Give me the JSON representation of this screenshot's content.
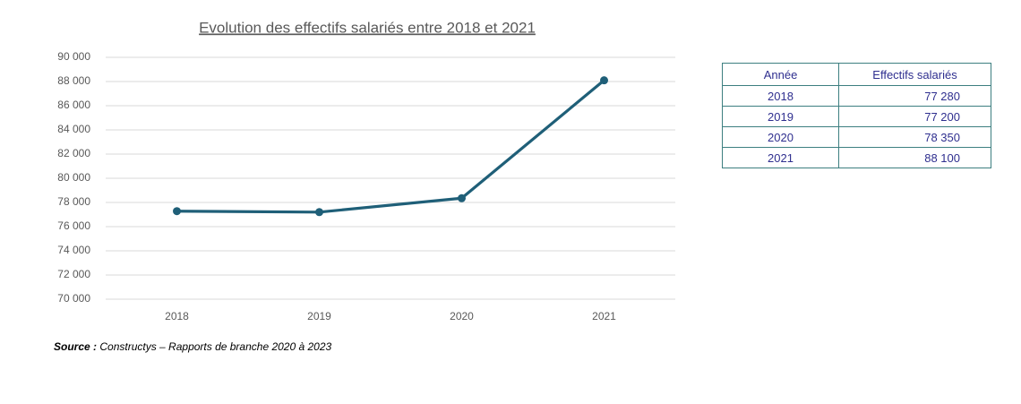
{
  "chart_data": {
    "type": "line",
    "title": "Evolution des effectifs salariés entre 2018 et 2021",
    "categories": [
      "2018",
      "2019",
      "2020",
      "2021"
    ],
    "values": [
      77280,
      77200,
      78350,
      88100
    ],
    "color": "#1f5f78",
    "ylim": [
      70000,
      90000
    ],
    "yticks": [
      {
        "value": 70000,
        "label": "70 000"
      },
      {
        "value": 72000,
        "label": "72 000"
      },
      {
        "value": 74000,
        "label": "74 000"
      },
      {
        "value": 76000,
        "label": "76 000"
      },
      {
        "value": 78000,
        "label": "78 000"
      },
      {
        "value": 80000,
        "label": "80 000"
      },
      {
        "value": 82000,
        "label": "82 000"
      },
      {
        "value": 84000,
        "label": "84 000"
      },
      {
        "value": 86000,
        "label": "86 000"
      },
      {
        "value": 88000,
        "label": "88 000"
      },
      {
        "value": 90000,
        "label": "90 000"
      }
    ],
    "grid": true,
    "source_label": "Source :",
    "source": "Constructys – Rapports de branche 2020 à 2023"
  },
  "table": {
    "columns": [
      "Année",
      "Effectifs salariés"
    ],
    "rows": [
      [
        "2018",
        "77 280"
      ],
      [
        "2019",
        "77 200"
      ],
      [
        "2020",
        "78 350"
      ],
      [
        "2021",
        "88 100"
      ]
    ]
  }
}
